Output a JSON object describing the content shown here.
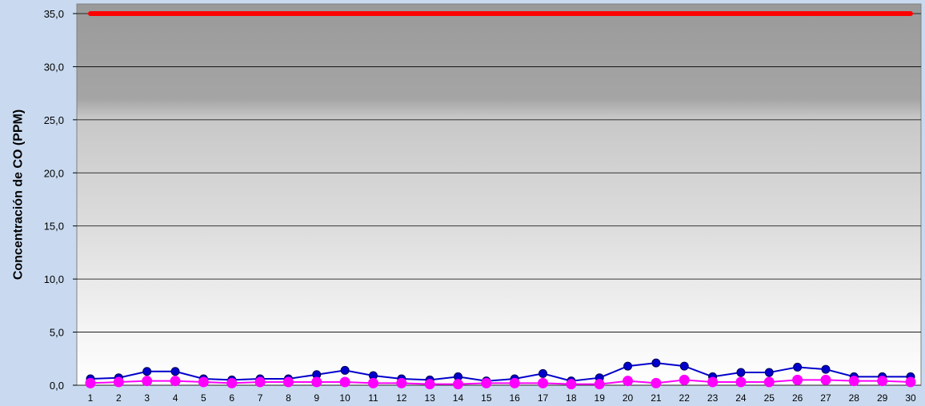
{
  "chart_data": {
    "type": "line",
    "title": "",
    "xlabel": "",
    "ylabel": "Concentración de CO (PPM)",
    "ylim": [
      0,
      35
    ],
    "yticks": [
      "0,0",
      "5,0",
      "10,0",
      "15,0",
      "20,0",
      "25,0",
      "30,0",
      "35,0"
    ],
    "categories": [
      "1",
      "2",
      "3",
      "4",
      "5",
      "6",
      "7",
      "8",
      "9",
      "10",
      "11",
      "12",
      "13",
      "14",
      "15",
      "16",
      "17",
      "18",
      "19",
      "20",
      "21",
      "22",
      "23",
      "24",
      "25",
      "26",
      "27",
      "28",
      "29",
      "30"
    ],
    "grid": true,
    "legend": "none",
    "series": [
      {
        "color": "#ff0000",
        "marker": "none",
        "values": [
          35,
          35,
          35,
          35,
          35,
          35,
          35,
          35,
          35,
          35,
          35,
          35,
          35,
          35,
          35,
          35,
          35,
          35,
          35,
          35,
          35,
          35,
          35,
          35,
          35,
          35,
          35,
          35,
          35,
          35
        ]
      },
      {
        "color": "#0000cc",
        "marker": "circle",
        "values": [
          0.6,
          0.7,
          1.3,
          1.3,
          0.6,
          0.5,
          0.6,
          0.6,
          1.0,
          1.4,
          0.9,
          0.6,
          0.5,
          0.8,
          0.4,
          0.6,
          1.1,
          0.4,
          0.7,
          1.8,
          2.1,
          1.8,
          0.8,
          1.2,
          1.2,
          1.7,
          1.5,
          0.8,
          0.8,
          0.8
        ]
      },
      {
        "color": "#ff00ff",
        "marker": "circle",
        "values": [
          0.2,
          0.3,
          0.4,
          0.4,
          0.3,
          0.2,
          0.3,
          0.3,
          0.3,
          0.3,
          0.2,
          0.2,
          0.1,
          0.1,
          0.2,
          0.2,
          0.2,
          0.1,
          0.1,
          0.4,
          0.2,
          0.5,
          0.3,
          0.3,
          0.3,
          0.5,
          0.5,
          0.4,
          0.4,
          0.3
        ]
      }
    ]
  },
  "colors": {
    "page_background": "#c9daf0",
    "plot_background_top": "#9a9a9a",
    "plot_background_bottom": "#ffffff",
    "gridline": "#000000"
  }
}
